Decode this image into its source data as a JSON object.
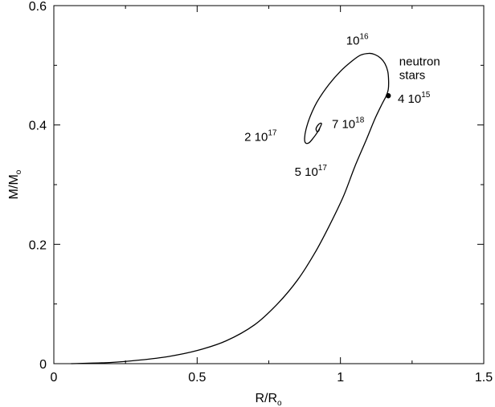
{
  "chart_data": {
    "type": "line",
    "xlabel": {
      "main": "R/R",
      "sub": "o"
    },
    "ylabel": {
      "main": "M/M",
      "sub": "o"
    },
    "xlim": [
      0,
      1.5
    ],
    "ylim": [
      0,
      0.6
    ],
    "x_ticks": [
      {
        "value": 0,
        "label": "0"
      },
      {
        "value": 0.5,
        "label": "0.5"
      },
      {
        "value": 1,
        "label": "1"
      },
      {
        "value": 1.5,
        "label": "1.5"
      }
    ],
    "y_ticks": [
      {
        "value": 0,
        "label": "0"
      },
      {
        "value": 0.2,
        "label": "0.2"
      },
      {
        "value": 0.4,
        "label": "0.4"
      },
      {
        "value": 0.6,
        "label": "0.6"
      }
    ],
    "grid": false,
    "series": [
      {
        "x": [
          0.06,
          0.2,
          0.3,
          0.4,
          0.5,
          0.6,
          0.7,
          0.78,
          0.85,
          0.91,
          0.96,
          1.01,
          1.05,
          1.09,
          1.12,
          1.145,
          1.16,
          1.167,
          1.168,
          1.165,
          1.155,
          1.14,
          1.12,
          1.1,
          1.07,
          1.04,
          1.0,
          0.96,
          0.92,
          0.895,
          0.88,
          0.875,
          0.878,
          0.89,
          0.905,
          0.92,
          0.93,
          0.934,
          0.93,
          0.922,
          0.915,
          0.918,
          0.924,
          0.928
        ],
        "y": [
          0.0,
          0.002,
          0.006,
          0.012,
          0.022,
          0.038,
          0.065,
          0.1,
          0.14,
          0.185,
          0.23,
          0.28,
          0.33,
          0.375,
          0.41,
          0.435,
          0.449,
          0.46,
          0.475,
          0.49,
          0.503,
          0.512,
          0.518,
          0.52,
          0.517,
          0.507,
          0.49,
          0.468,
          0.44,
          0.415,
          0.393,
          0.378,
          0.37,
          0.37,
          0.378,
          0.388,
          0.397,
          0.402,
          0.403,
          0.4,
          0.394,
          0.389,
          0.39,
          0.395
        ]
      }
    ],
    "points": [
      {
        "x": 1.167,
        "y": 0.449
      }
    ],
    "annotations": [
      {
        "id": "e16",
        "base": "10",
        "exp": "16",
        "x": 1.02,
        "y": 0.535
      },
      {
        "id": "neutron1",
        "text": "neutron",
        "x": 1.205,
        "y": 0.5
      },
      {
        "id": "neutron2",
        "text": "stars",
        "x": 1.205,
        "y": 0.477
      },
      {
        "id": "p4e15",
        "base": "4 10",
        "exp": "15",
        "x": 1.2,
        "y": 0.437
      },
      {
        "id": "p7e18",
        "base": "7 10",
        "exp": "18",
        "x": 0.97,
        "y": 0.395
      },
      {
        "id": "p2e17",
        "base": "2 10",
        "exp": "17",
        "x": 0.665,
        "y": 0.373
      },
      {
        "id": "p5e17",
        "base": "5 10",
        "exp": "17",
        "x": 0.84,
        "y": 0.315
      }
    ]
  }
}
